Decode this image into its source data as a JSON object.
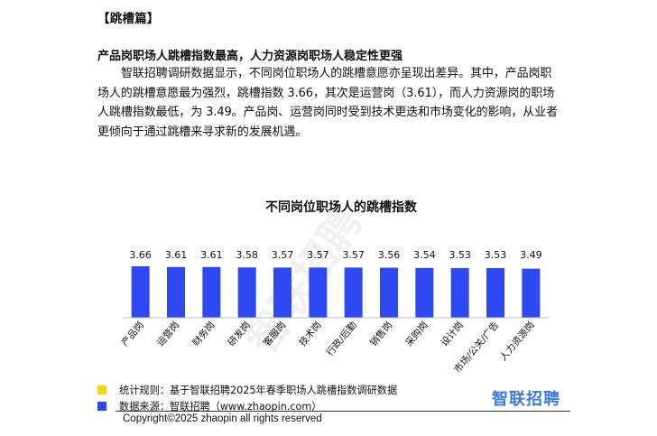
{
  "section_tag": "【跳槽篇】",
  "heading": "产品岗职场人跳槽指数最高，人力资源岗职场人稳定性更强",
  "paragraph": "智联招聘调研数据显示，不同岗位职场人的跳槽意愿亦呈现出差异。其中，产品岗职场人的跳槽意愿最为强烈，跳槽指数 3.66，其次是运营岗（3.61），而人力资源岗的职场人跳槽指数最低，为 3.49。产品岗、运营岗同时受到技术更迭和市场变化的影响，从业者更倾向于通过跳槽来寻求新的发展机遇。",
  "chart_data": {
    "type": "bar",
    "title": "不同岗位职场人的跳槽指数",
    "categories": [
      "产品岗",
      "运营岗",
      "财务岗",
      "研发岗",
      "客服岗",
      "技术岗",
      "行政/后勤",
      "销售岗",
      "采购岗",
      "设计岗",
      "市场/公关/广告",
      "人力资源岗"
    ],
    "values": [
      3.66,
      3.61,
      3.61,
      3.58,
      3.57,
      3.57,
      3.57,
      3.56,
      3.54,
      3.53,
      3.53,
      3.49
    ],
    "value_labels": [
      "3.66",
      "3.61",
      "3.61",
      "3.58",
      "3.57",
      "3.57",
      "3.57",
      "3.56",
      "3.54",
      "3.53",
      "3.53",
      "3.49"
    ],
    "ylim": [
      0,
      3.66
    ],
    "bar_color": "#2f49f2",
    "grid": false,
    "xlabel": "",
    "ylabel": ""
  },
  "footer": {
    "rule_label": "统计规则：基于智联招聘2025年春季职场人跳槽指数调研数据",
    "rule_color": "#f2d21b",
    "source_label": "数据来源：智联招聘（www.zhaopin.com）",
    "source_color": "#2f49f2",
    "copyright": "Copyright©2025 zhaopin all rights reserved",
    "brand": "智联招聘",
    "brand_color": "#3a7be0"
  },
  "watermark": "智联招聘"
}
